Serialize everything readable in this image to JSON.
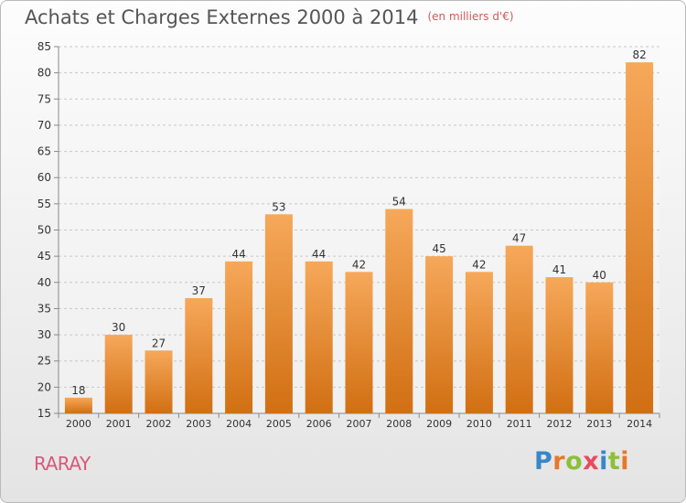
{
  "header": {
    "title": "Achats et Charges Externes 2000 à 2014",
    "unit": "(en milliers d'€)"
  },
  "location": "RARAY",
  "logo": {
    "letters": [
      {
        "ch": "P",
        "color": "#3a86c8"
      },
      {
        "ch": "r",
        "color": "#e8762c"
      },
      {
        "ch": "o",
        "color": "#8cbf3a"
      },
      {
        "ch": "x",
        "color": "#e84a5f"
      },
      {
        "ch": "i",
        "color": "#3a86c8"
      },
      {
        "ch": "t",
        "color": "#8cbf3a"
      },
      {
        "ch": "i",
        "color": "#e8762c"
      }
    ]
  },
  "colors": {
    "bar_top": "#f6a85a",
    "bar_bottom": "#d16f12",
    "grid": "#c8c8c8",
    "axis_text": "#333333"
  },
  "chart_data": {
    "type": "bar",
    "title": "Achats et Charges Externes 2000 à 2014",
    "subtitle": "(en milliers d'€)",
    "categories": [
      "2000",
      "2001",
      "2002",
      "2003",
      "2004",
      "2005",
      "2006",
      "2007",
      "2008",
      "2009",
      "2010",
      "2011",
      "2012",
      "2013",
      "2014"
    ],
    "values": [
      18,
      30,
      27,
      37,
      44,
      53,
      44,
      42,
      54,
      45,
      42,
      47,
      41,
      40,
      82
    ],
    "ylim": [
      15,
      85
    ],
    "yticks": [
      15,
      20,
      25,
      30,
      35,
      40,
      45,
      50,
      55,
      60,
      65,
      70,
      75,
      80,
      85
    ],
    "grid": "horizontal dashed",
    "data_labels": true
  }
}
